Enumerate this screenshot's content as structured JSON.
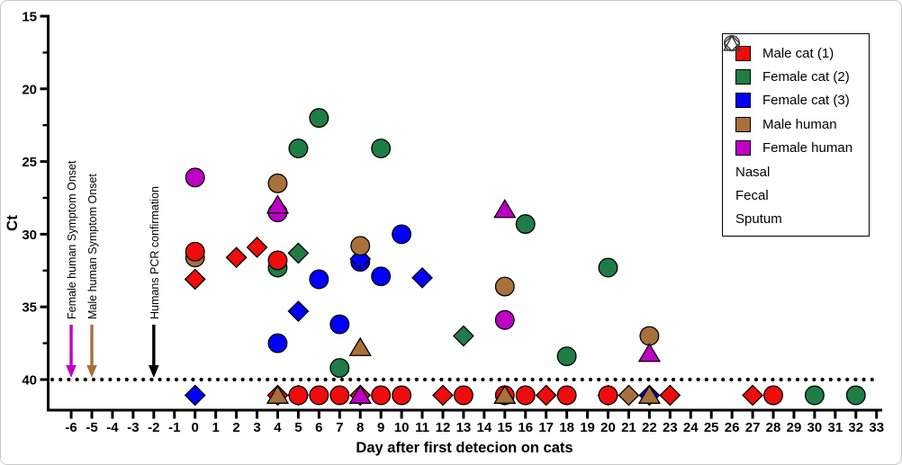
{
  "figure": {
    "x_axis_title": "Day after first detecion on cats",
    "y_axis_title": "Ct"
  },
  "annotations": [
    {
      "label": "Female human Symptom Onset",
      "day": -6,
      "color": "#be00c4"
    },
    {
      "label": "Male human Symptom Onset",
      "day": -5,
      "color": "#a8713b"
    },
    {
      "label": "Humans PCR confirmation",
      "day": -2,
      "color": "#000000"
    }
  ],
  "legend": {
    "subjects": [
      {
        "id": "male_cat",
        "label": "Male cat (1)",
        "color": "#ee0c0c"
      },
      {
        "id": "female_cat_2",
        "label": "Female cat (2)",
        "color": "#1f7d45"
      },
      {
        "id": "female_cat_3",
        "label": "Female cat (3)",
        "color": "#0000fa"
      },
      {
        "id": "male_human",
        "label": "Male human",
        "color": "#a8713b"
      },
      {
        "id": "female_human",
        "label": "Female human",
        "color": "#be00c4"
      }
    ],
    "samples": [
      {
        "id": "nasal",
        "label": "Nasal",
        "shape": "circle"
      },
      {
        "id": "fecal",
        "label": "Fecal",
        "shape": "diamond"
      },
      {
        "id": "sputum",
        "label": "Sputum",
        "shape": "triangle"
      }
    ]
  },
  "chart_data": {
    "type": "scatter",
    "title": "",
    "xlabel": "Day after first detecion on cats",
    "ylabel": "Ct",
    "x_ticks": [
      -6,
      -5,
      -4,
      -3,
      -2,
      -1,
      0,
      1,
      2,
      3,
      4,
      5,
      6,
      7,
      8,
      9,
      10,
      11,
      12,
      13,
      14,
      15,
      16,
      17,
      18,
      19,
      20,
      21,
      22,
      23,
      24,
      25,
      26,
      27,
      28,
      29,
      30,
      31,
      32,
      33
    ],
    "y_ticks": [
      15,
      20,
      25,
      30,
      35,
      40
    ],
    "y_minor_ticks": [
      17.5,
      22.5,
      27.5,
      32.5,
      37.5
    ],
    "y_axis_inverted": true,
    "xlim": [
      -7,
      33.5
    ],
    "ylim": [
      15,
      42
    ],
    "detection_limit_ct": 40,
    "detection_limit_style": "dotted",
    "negative_row_display_ct": 41,
    "points": [
      {
        "day": 0,
        "ct": 26.1,
        "subject": "female_human",
        "sample": "nasal"
      },
      {
        "day": 0,
        "ct": 31.6,
        "subject": "male_human",
        "sample": "nasal"
      },
      {
        "day": 0,
        "ct": 31.2,
        "subject": "male_cat",
        "sample": "nasal"
      },
      {
        "day": 0,
        "ct": 33.1,
        "subject": "male_cat",
        "sample": "fecal"
      },
      {
        "day": 2,
        "ct": 31.6,
        "subject": "male_cat",
        "sample": "fecal"
      },
      {
        "day": 3,
        "ct": 30.9,
        "subject": "male_cat",
        "sample": "fecal"
      },
      {
        "day": 4,
        "ct": 26.5,
        "subject": "male_human",
        "sample": "nasal"
      },
      {
        "day": 4,
        "ct": 28.5,
        "subject": "female_human",
        "sample": "nasal"
      },
      {
        "day": 4,
        "ct": 28.0,
        "subject": "female_human",
        "sample": "sputum"
      },
      {
        "day": 4,
        "ct": 32.3,
        "subject": "female_cat_2",
        "sample": "nasal"
      },
      {
        "day": 4,
        "ct": 31.8,
        "subject": "male_cat",
        "sample": "nasal"
      },
      {
        "day": 4,
        "ct": 37.5,
        "subject": "female_cat_3",
        "sample": "nasal"
      },
      {
        "day": 5,
        "ct": 24.1,
        "subject": "female_cat_2",
        "sample": "nasal"
      },
      {
        "day": 5,
        "ct": 31.3,
        "subject": "female_cat_2",
        "sample": "fecal"
      },
      {
        "day": 5,
        "ct": 35.3,
        "subject": "female_cat_3",
        "sample": "fecal"
      },
      {
        "day": 6,
        "ct": 22.0,
        "subject": "female_cat_2",
        "sample": "nasal"
      },
      {
        "day": 6,
        "ct": 33.1,
        "subject": "female_cat_3",
        "sample": "nasal"
      },
      {
        "day": 7,
        "ct": 36.2,
        "subject": "female_cat_3",
        "sample": "nasal"
      },
      {
        "day": 7,
        "ct": 39.2,
        "subject": "female_cat_2",
        "sample": "nasal"
      },
      {
        "day": 8,
        "ct": 31.9,
        "subject": "female_cat_3",
        "sample": "nasal"
      },
      {
        "day": 8,
        "ct": 31.7,
        "subject": "female_cat_3",
        "sample": "fecal"
      },
      {
        "day": 8,
        "ct": 30.8,
        "subject": "male_human",
        "sample": "nasal"
      },
      {
        "day": 8,
        "ct": 37.8,
        "subject": "male_human",
        "sample": "sputum"
      },
      {
        "day": 9,
        "ct": 24.1,
        "subject": "female_cat_2",
        "sample": "nasal"
      },
      {
        "day": 9,
        "ct": 32.9,
        "subject": "female_cat_3",
        "sample": "nasal"
      },
      {
        "day": 10,
        "ct": 30.0,
        "subject": "female_cat_3",
        "sample": "nasal"
      },
      {
        "day": 11,
        "ct": 33.0,
        "subject": "female_cat_3",
        "sample": "fecal"
      },
      {
        "day": 13,
        "ct": 37.0,
        "subject": "female_cat_2",
        "sample": "fecal"
      },
      {
        "day": 15,
        "ct": 28.3,
        "subject": "female_human",
        "sample": "sputum"
      },
      {
        "day": 15,
        "ct": 33.6,
        "subject": "male_human",
        "sample": "nasal"
      },
      {
        "day": 15,
        "ct": 35.9,
        "subject": "female_human",
        "sample": "nasal"
      },
      {
        "day": 16,
        "ct": 29.3,
        "subject": "female_cat_2",
        "sample": "nasal"
      },
      {
        "day": 18,
        "ct": 38.4,
        "subject": "female_cat_2",
        "sample": "nasal"
      },
      {
        "day": 20,
        "ct": 32.3,
        "subject": "female_cat_2",
        "sample": "nasal"
      },
      {
        "day": 22,
        "ct": 37.0,
        "subject": "male_human",
        "sample": "nasal"
      },
      {
        "day": 22,
        "ct": 38.2,
        "subject": "female_human",
        "sample": "sputum"
      }
    ],
    "negative_points": [
      {
        "day": 0,
        "subject": "female_cat_3",
        "sample": "fecal"
      },
      {
        "day": 4,
        "subject": "male_cat",
        "sample": "fecal"
      },
      {
        "day": 4,
        "subject": "male_human",
        "sample": "sputum"
      },
      {
        "day": 5,
        "subject": "male_cat",
        "sample": "fecal"
      },
      {
        "day": 5,
        "subject": "male_cat",
        "sample": "nasal"
      },
      {
        "day": 6,
        "subject": "male_cat",
        "sample": "nasal"
      },
      {
        "day": 7,
        "subject": "male_cat",
        "sample": "nasal"
      },
      {
        "day": 8,
        "subject": "male_cat",
        "sample": "fecal"
      },
      {
        "day": 8,
        "subject": "female_human",
        "sample": "sputum"
      },
      {
        "day": 9,
        "subject": "male_cat",
        "sample": "nasal"
      },
      {
        "day": 10,
        "subject": "male_cat",
        "sample": "nasal"
      },
      {
        "day": 12,
        "subject": "male_cat",
        "sample": "fecal"
      },
      {
        "day": 13,
        "subject": "male_cat",
        "sample": "nasal"
      },
      {
        "day": 15,
        "subject": "male_cat",
        "sample": "nasal"
      },
      {
        "day": 15,
        "subject": "male_human",
        "sample": "sputum"
      },
      {
        "day": 16,
        "subject": "male_cat",
        "sample": "nasal"
      },
      {
        "day": 17,
        "subject": "male_cat",
        "sample": "fecal"
      },
      {
        "day": 18,
        "subject": "male_cat",
        "sample": "nasal"
      },
      {
        "day": 20,
        "subject": "male_cat",
        "sample": "fecal"
      },
      {
        "day": 20,
        "subject": "male_cat",
        "sample": "nasal"
      },
      {
        "day": 21,
        "subject": "male_human",
        "sample": "fecal"
      },
      {
        "day": 22,
        "subject": "female_cat_3",
        "sample": "fecal"
      },
      {
        "day": 22,
        "subject": "male_human",
        "sample": "sputum"
      },
      {
        "day": 23,
        "subject": "male_cat",
        "sample": "fecal"
      },
      {
        "day": 27,
        "subject": "male_cat",
        "sample": "fecal"
      },
      {
        "day": 28,
        "subject": "male_cat",
        "sample": "nasal"
      },
      {
        "day": 30,
        "subject": "female_cat_2",
        "sample": "nasal"
      },
      {
        "day": 32,
        "subject": "female_cat_2",
        "sample": "nasal"
      }
    ]
  }
}
